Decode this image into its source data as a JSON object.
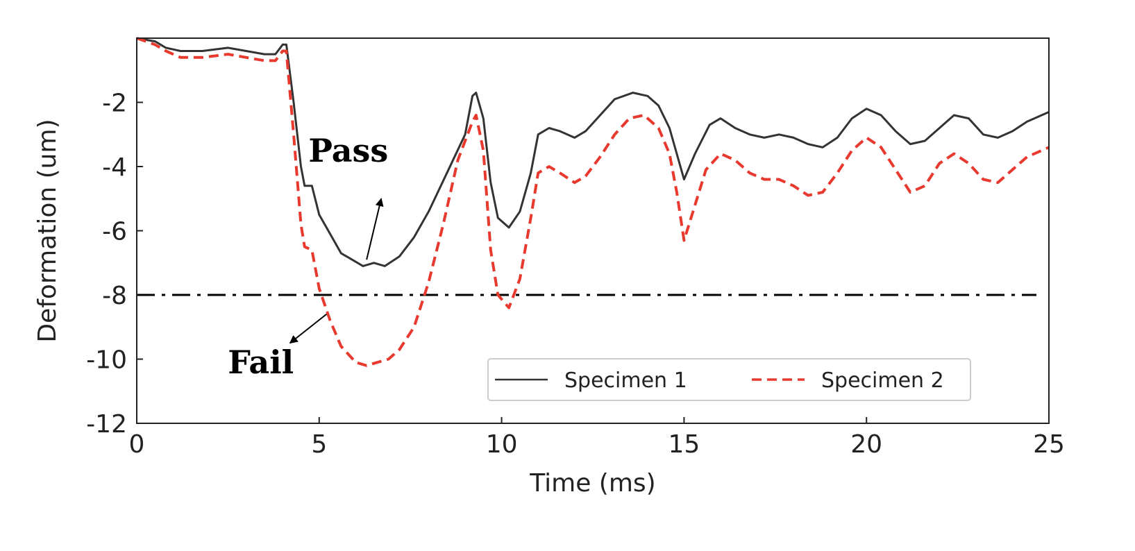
{
  "chart_data": {
    "type": "line",
    "title": "",
    "xlabel": "Time (ms)",
    "ylabel": "Deformation (um)",
    "xlim": [
      0,
      25
    ],
    "ylim": [
      -12,
      0
    ],
    "xticks": [
      0,
      5,
      10,
      15,
      20,
      25
    ],
    "xtick_labels": [
      "0",
      "5",
      "10",
      "15",
      "20",
      "25"
    ],
    "yticks": [
      -12,
      -10,
      -8,
      -6,
      -4,
      -2
    ],
    "ytick_labels": [
      "-12",
      "-10",
      "-8",
      "-6",
      "-4",
      "-2"
    ],
    "grid": false,
    "legend_position": "lower-right",
    "threshold": {
      "y": -8,
      "style": "dash-dot",
      "color": "#000000"
    },
    "annotations": [
      {
        "text": "Pass",
        "x": 5.8,
        "y": -3.5,
        "arrow_from": [
          6.3,
          -6.9
        ],
        "arrow_to": [
          6.7,
          -5.0
        ]
      },
      {
        "text": "Fail",
        "x": 3.4,
        "y": -10.1,
        "arrow_from": [
          5.2,
          -8.6
        ],
        "arrow_to": [
          4.2,
          -9.5
        ]
      }
    ],
    "series": [
      {
        "name": "Specimen 1",
        "color": "#333333",
        "style": "solid",
        "x": [
          0,
          0.5,
          0.8,
          1.2,
          1.8,
          2.5,
          3.0,
          3.5,
          3.8,
          4.0,
          4.1,
          4.3,
          4.5,
          4.6,
          4.8,
          5.0,
          5.3,
          5.6,
          5.9,
          6.2,
          6.5,
          6.8,
          7.2,
          7.6,
          8.0,
          8.5,
          9.0,
          9.2,
          9.3,
          9.5,
          9.7,
          9.9,
          10.2,
          10.5,
          10.8,
          11.0,
          11.3,
          11.6,
          12.0,
          12.3,
          12.7,
          13.1,
          13.6,
          14.0,
          14.3,
          14.6,
          14.8,
          15.0,
          15.3,
          15.7,
          16.0,
          16.4,
          16.8,
          17.2,
          17.6,
          18.0,
          18.4,
          18.8,
          19.2,
          19.6,
          20.0,
          20.4,
          20.8,
          21.2,
          21.6,
          22.0,
          22.4,
          22.8,
          23.2,
          23.6,
          24.0,
          24.4,
          24.8,
          25.0
        ],
        "y": [
          0,
          -0.1,
          -0.3,
          -0.4,
          -0.4,
          -0.3,
          -0.4,
          -0.5,
          -0.5,
          -0.2,
          -0.2,
          -2.0,
          -4.0,
          -4.6,
          -4.6,
          -5.5,
          -6.1,
          -6.7,
          -6.9,
          -7.1,
          -7.0,
          -7.1,
          -6.8,
          -6.2,
          -5.4,
          -4.2,
          -3.0,
          -1.8,
          -1.7,
          -2.5,
          -4.5,
          -5.6,
          -5.9,
          -5.4,
          -4.2,
          -3.0,
          -2.8,
          -2.9,
          -3.1,
          -2.9,
          -2.4,
          -1.9,
          -1.7,
          -1.8,
          -2.1,
          -2.8,
          -3.6,
          -4.4,
          -3.6,
          -2.7,
          -2.5,
          -2.8,
          -3.0,
          -3.1,
          -3.0,
          -3.1,
          -3.3,
          -3.4,
          -3.1,
          -2.5,
          -2.2,
          -2.4,
          -2.9,
          -3.3,
          -3.2,
          -2.8,
          -2.4,
          -2.5,
          -3.0,
          -3.1,
          -2.9,
          -2.6,
          -2.4,
          -2.3
        ]
      },
      {
        "name": "Specimen 2",
        "color": "#e8392f",
        "style": "dashed",
        "x": [
          0,
          0.5,
          0.8,
          1.2,
          1.8,
          2.5,
          3.0,
          3.5,
          3.8,
          4.0,
          4.1,
          4.3,
          4.5,
          4.6,
          4.8,
          5.0,
          5.3,
          5.6,
          6.0,
          6.3,
          6.6,
          6.9,
          7.2,
          7.6,
          8.0,
          8.4,
          8.8,
          9.2,
          9.3,
          9.5,
          9.7,
          9.9,
          10.2,
          10.5,
          10.8,
          11.0,
          11.3,
          11.6,
          12.0,
          12.3,
          12.7,
          13.1,
          13.5,
          13.9,
          14.3,
          14.6,
          14.8,
          15.0,
          15.3,
          15.6,
          16.0,
          16.4,
          16.8,
          17.2,
          17.6,
          18.0,
          18.4,
          18.8,
          19.2,
          19.6,
          20.0,
          20.4,
          20.8,
          21.2,
          21.6,
          22.0,
          22.4,
          22.8,
          23.2,
          23.6,
          24.0,
          24.4,
          24.8,
          25.0
        ],
        "y": [
          0,
          -0.2,
          -0.4,
          -0.6,
          -0.6,
          -0.5,
          -0.6,
          -0.7,
          -0.7,
          -0.4,
          -0.4,
          -3.0,
          -5.8,
          -6.5,
          -6.6,
          -7.8,
          -8.8,
          -9.6,
          -10.1,
          -10.2,
          -10.1,
          -10.0,
          -9.7,
          -9.0,
          -7.6,
          -5.8,
          -3.8,
          -2.6,
          -2.4,
          -3.5,
          -6.6,
          -8.0,
          -8.4,
          -7.5,
          -5.6,
          -4.2,
          -4.0,
          -4.2,
          -4.5,
          -4.3,
          -3.7,
          -3.0,
          -2.5,
          -2.4,
          -2.8,
          -3.6,
          -4.8,
          -6.3,
          -5.2,
          -4.1,
          -3.6,
          -3.8,
          -4.2,
          -4.4,
          -4.4,
          -4.6,
          -4.9,
          -4.8,
          -4.2,
          -3.5,
          -3.1,
          -3.4,
          -4.1,
          -4.8,
          -4.6,
          -3.9,
          -3.6,
          -3.9,
          -4.4,
          -4.5,
          -4.1,
          -3.7,
          -3.5,
          -3.4
        ]
      }
    ]
  }
}
